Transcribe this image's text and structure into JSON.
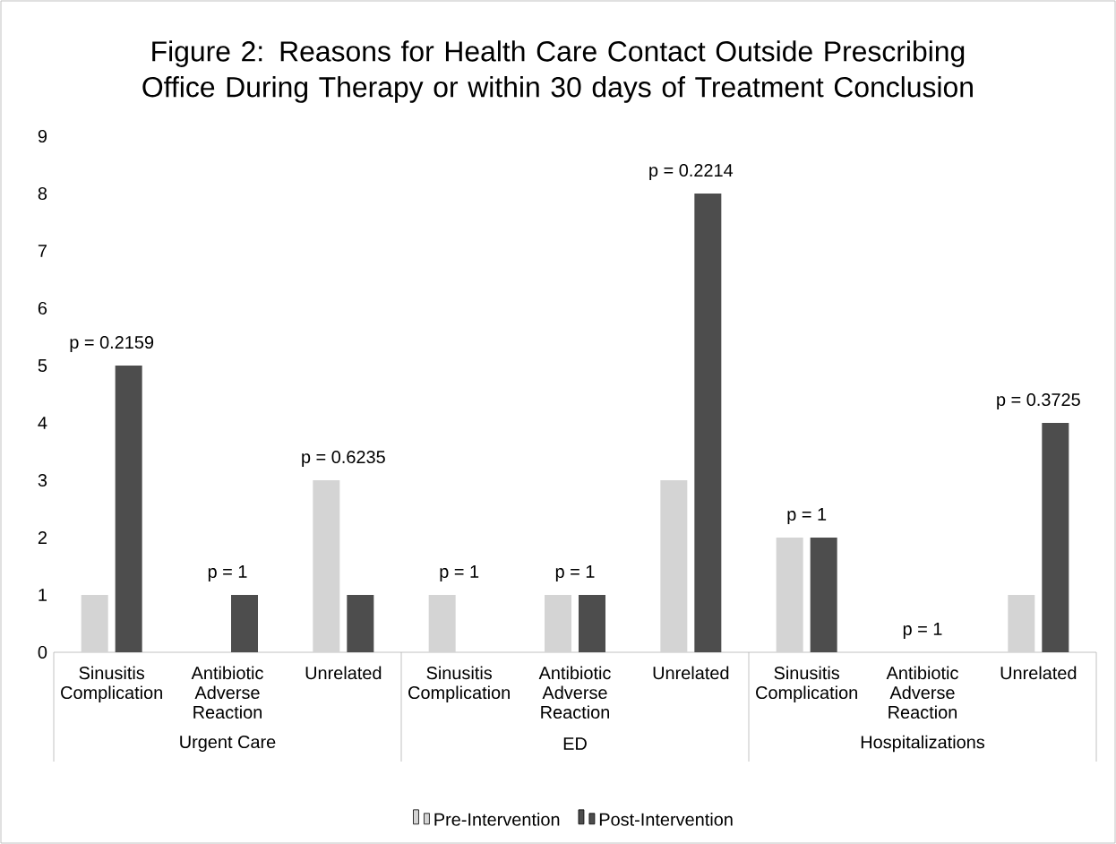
{
  "chart_data": {
    "type": "bar",
    "title": "Figure 2: Reasons for Health Care Contact Outside Prescribing Office During Therapy or within 30 days of Treatment Conclusion",
    "categories": [
      "Sinusitis Complication",
      "Antibiotic Adverse Reaction",
      "Unrelated",
      "Sinusitis Complication",
      "Antibiotic Adverse Reaction",
      "Unrelated",
      "Sinusitis Complication",
      "Antibiotic Adverse Reaction",
      "Unrelated"
    ],
    "series": [
      {
        "name": "Pre-Intervention",
        "color": "#d4d4d4",
        "values": [
          1,
          0,
          3,
          1,
          1,
          3,
          2,
          0,
          1
        ]
      },
      {
        "name": "Post-Intervention",
        "color": "#4d4d4d",
        "values": [
          5,
          1,
          1,
          0,
          1,
          8,
          2,
          0,
          4
        ]
      }
    ],
    "ylim": [
      0,
      9
    ],
    "yticks": [
      0,
      1,
      2,
      3,
      4,
      5,
      6,
      7,
      8,
      9
    ],
    "legend": "bottom",
    "annotations": [
      "p = 0.2159",
      "p = 1",
      "p = 0.6235",
      "p = 1",
      "p = 1",
      "p = 0.2214",
      "p = 1",
      "p = 1",
      "p = 0.3725",
      "Urgent Care",
      "ED",
      "Hospitalizations"
    ]
  }
}
